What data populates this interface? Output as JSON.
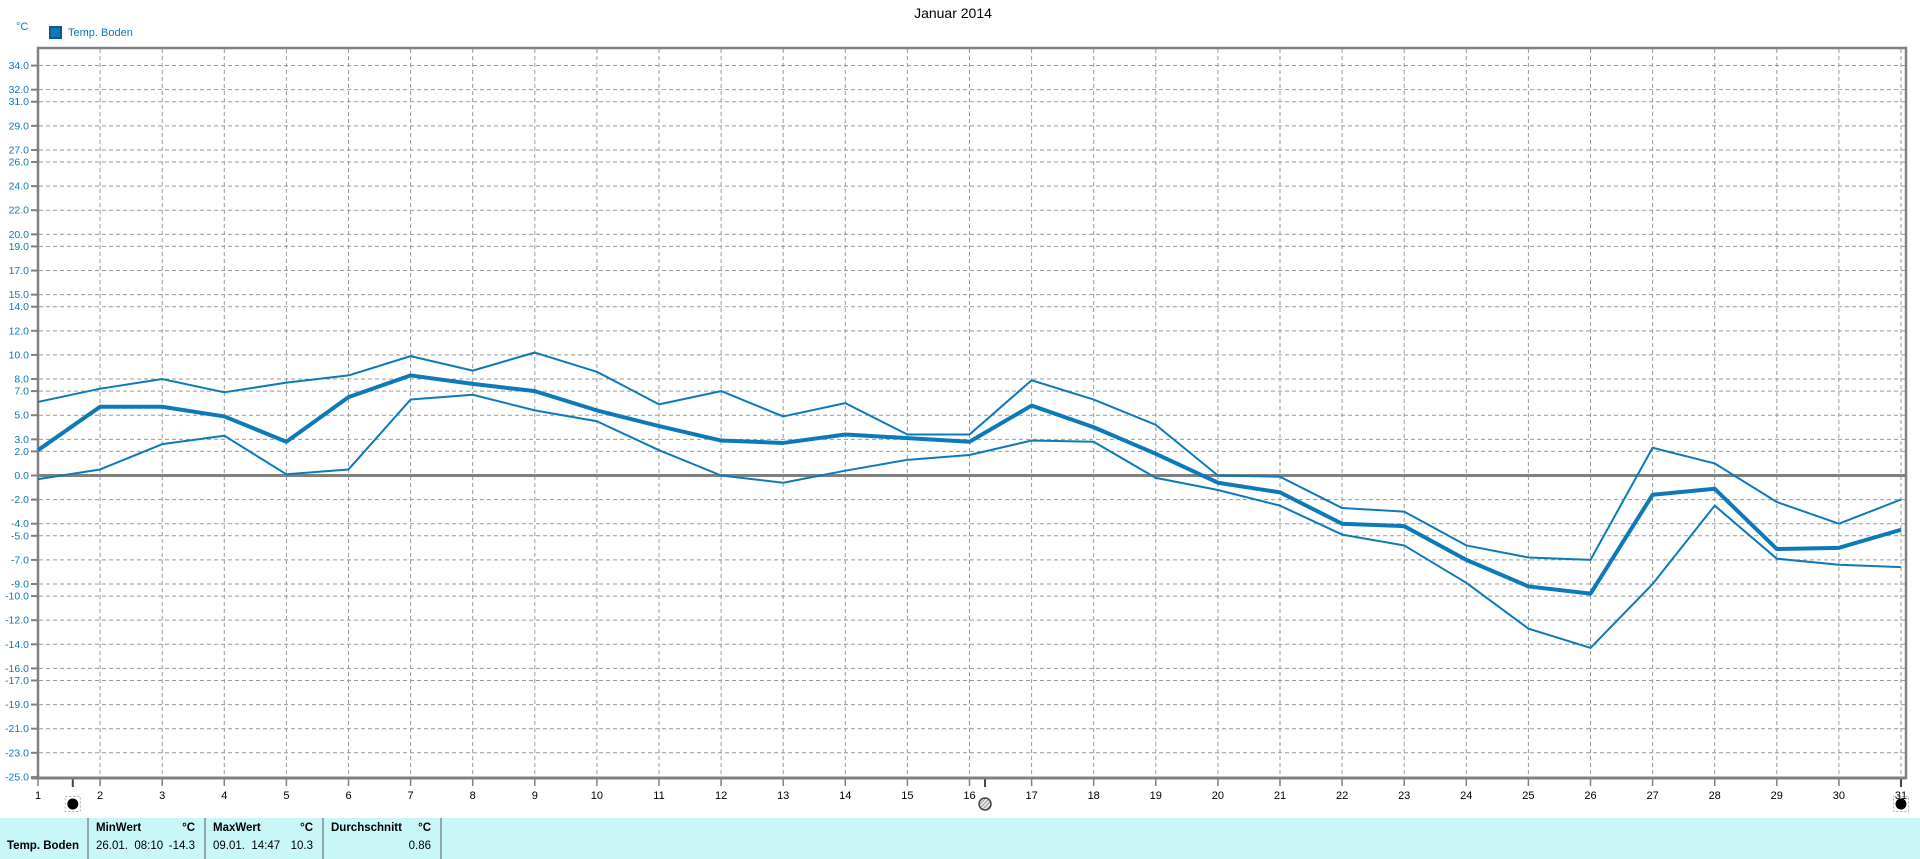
{
  "title": "Januar 2014",
  "y_axis_unit": "°C",
  "legend": {
    "label": "Temp. Boden"
  },
  "colors": {
    "series_blue": "#0e79b9",
    "legend_border": "#0b5c8d",
    "grid": "#999999",
    "axis": "#808080",
    "axis_label_blue": "#0e79b9",
    "x_label_black": "#000000",
    "footer_bg": "#c9f6f6",
    "footer_divider": "#8fa8b2"
  },
  "chart_data": {
    "type": "line",
    "title": "Januar 2014",
    "xlabel": "",
    "ylabel": "°C",
    "grid": true,
    "zero_line": true,
    "legend_position": "top-left",
    "ylim": [
      -25,
      35.5
    ],
    "x_categories": [
      "1",
      "2",
      "3",
      "4",
      "5",
      "6",
      "7",
      "8",
      "9",
      "10",
      "11",
      "12",
      "13",
      "14",
      "15",
      "16",
      "17",
      "18",
      "19",
      "20",
      "21",
      "22",
      "23",
      "24",
      "25",
      "26",
      "27",
      "28",
      "29",
      "30",
      "31"
    ],
    "y_tick_labels": [
      "34.0",
      "32.0",
      "31.0",
      "29.0",
      "27.0",
      "26.0",
      "24.0",
      "22.0",
      "20.0",
      "19.0",
      "17.0",
      "15.0",
      "14.0",
      "12.0",
      "10.0",
      "8.0",
      "7.0",
      "5.0",
      "3.0",
      "2.0",
      "0.0",
      "-2.0",
      "-4.0",
      "-5.0",
      "-7.0",
      "-9.0",
      "-10.0",
      "-12.0",
      "-14.0",
      "-16.0",
      "-17.0",
      "-19.0",
      "-21.0",
      "-23.0",
      "-25.0"
    ],
    "series": [
      {
        "name": "max",
        "style": "thin",
        "values": [
          6.1,
          7.2,
          8.0,
          6.9,
          7.7,
          8.3,
          9.9,
          8.7,
          10.2,
          8.6,
          5.9,
          7.0,
          4.9,
          6.0,
          3.4,
          3.4,
          7.9,
          6.3,
          4.2,
          0.0,
          -0.1,
          -2.7,
          -3.0,
          -5.8,
          -6.8,
          -7.0,
          2.3,
          1.0,
          -2.2,
          -4.0,
          -2.0
        ]
      },
      {
        "name": "mean",
        "style": "thick",
        "values": [
          2.1,
          5.7,
          5.7,
          4.9,
          2.8,
          6.5,
          8.3,
          7.6,
          7.0,
          5.4,
          4.1,
          2.9,
          2.7,
          3.4,
          3.1,
          2.8,
          5.8,
          4.0,
          1.8,
          -0.6,
          -1.4,
          -4.0,
          -4.2,
          -7.0,
          -9.2,
          -9.8,
          -1.6,
          -1.1,
          -6.1,
          -6.0,
          -4.5
        ]
      },
      {
        "name": "min",
        "style": "thin",
        "values": [
          -0.3,
          0.5,
          2.6,
          3.3,
          0.1,
          0.5,
          6.3,
          6.7,
          5.4,
          4.5,
          2.1,
          0.0,
          -0.6,
          0.4,
          1.3,
          1.7,
          2.9,
          2.8,
          -0.2,
          -1.2,
          -2.5,
          -4.9,
          -5.8,
          -8.9,
          -12.7,
          -14.3,
          -9.0,
          -2.5,
          -6.9,
          -7.4,
          -7.6
        ]
      }
    ],
    "slider_handles": [
      {
        "day": 1.56,
        "style": "filled"
      },
      {
        "day": 16.25,
        "style": "hatched"
      },
      {
        "day": 31,
        "style": "filled"
      }
    ]
  },
  "footer": {
    "row_label": "Temp. Boden",
    "columns": [
      {
        "header": "MinWert",
        "unit": "°C",
        "value": "26.01.  08:10",
        "number": "-14.3"
      },
      {
        "header": "MaxWert",
        "unit": "°C",
        "value": "09.01.  14:47",
        "number": "10.3"
      },
      {
        "header": "Durchschnitt",
        "unit": "°C",
        "value": "",
        "number": "0.86"
      }
    ]
  }
}
